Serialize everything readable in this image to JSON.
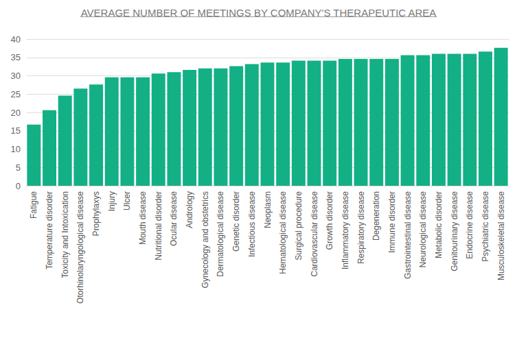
{
  "chart_data": {
    "type": "bar",
    "title": "AVERAGE NUMBER OF MEETINGS BY COMPANY'S THERAPEUTIC AREA",
    "categories": [
      "Fatigue",
      "Temperature disorder",
      "Toxicity and Intoxication",
      "Otorhinolaryngological disease",
      "Prophylaxys",
      "Injury",
      "Ulcer",
      "Mouth disease",
      "Nutritional disorder",
      "Ocular disease",
      "Andrology",
      "Gynecology and obstetrics",
      "Dermatological disease",
      "Genetic disorder",
      "Infectious disease",
      "Neoplasm",
      "Hematological disease",
      "Surgical procedure",
      "Cardiovascular disease",
      "Growth disorder",
      "Inflammatory disease",
      "Respiratory disease",
      "Degeneration",
      "Immune disorder",
      "Gastrointestinal disease",
      "Neurological disease",
      "Metabolic disorder",
      "Genitourinary disease",
      "Endocrine disease",
      "Psychiatric disease",
      "Musculoskeletal disease"
    ],
    "values": [
      16.7,
      20.6,
      24.6,
      26.5,
      27.6,
      29.6,
      29.6,
      29.6,
      30.6,
      31.0,
      31.6,
      32.0,
      32.0,
      32.6,
      33.2,
      33.6,
      33.6,
      34.1,
      34.1,
      34.1,
      34.6,
      34.6,
      34.6,
      34.6,
      35.6,
      35.6,
      36.0,
      36.0,
      36.0,
      36.6,
      37.6
    ],
    "color": "#13b085",
    "ylim": [
      0,
      40
    ],
    "yticks": [
      0,
      5,
      10,
      15,
      20,
      25,
      30,
      35,
      40
    ],
    "grid": true
  }
}
